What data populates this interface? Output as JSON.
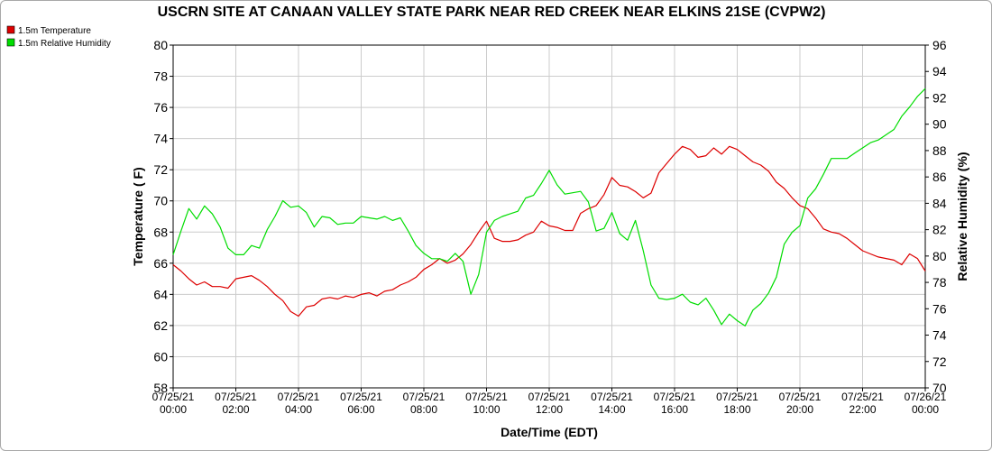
{
  "chart_data": {
    "type": "line",
    "title": "USCRN SITE AT CANAAN VALLEY STATE PARK NEAR RED CREEK NEAR ELKINS 21SE (CVPW2)",
    "xlabel": "Date/Time (EDT)",
    "ylabel": "Temperature ( F)",
    "y2label": "Relative Humidity (%)",
    "xlim": [
      0,
      24
    ],
    "ylim": [
      58,
      80
    ],
    "y2lim": [
      70,
      96
    ],
    "yticks": [
      58,
      60,
      62,
      64,
      66,
      68,
      70,
      72,
      74,
      76,
      78,
      80
    ],
    "y2ticks": [
      70,
      72,
      74,
      76,
      78,
      80,
      82,
      84,
      86,
      88,
      90,
      92,
      94,
      96
    ],
    "xticks": [
      {
        "x": 0,
        "date": "07/25/21",
        "time": "00:00"
      },
      {
        "x": 2,
        "date": "07/25/21",
        "time": "02:00"
      },
      {
        "x": 4,
        "date": "07/25/21",
        "time": "04:00"
      },
      {
        "x": 6,
        "date": "07/25/21",
        "time": "06:00"
      },
      {
        "x": 8,
        "date": "07/25/21",
        "time": "08:00"
      },
      {
        "x": 10,
        "date": "07/25/21",
        "time": "10:00"
      },
      {
        "x": 12,
        "date": "07/25/21",
        "time": "12:00"
      },
      {
        "x": 14,
        "date": "07/25/21",
        "time": "14:00"
      },
      {
        "x": 16,
        "date": "07/25/21",
        "time": "16:00"
      },
      {
        "x": 18,
        "date": "07/25/21",
        "time": "18:00"
      },
      {
        "x": 20,
        "date": "07/25/21",
        "time": "20:00"
      },
      {
        "x": 22,
        "date": "07/25/21",
        "time": "22:00"
      },
      {
        "x": 24,
        "date": "07/26/21",
        "time": "00:00"
      }
    ],
    "grid": true,
    "legend_position": "top-left",
    "series": [
      {
        "name": "1.5m Temperature",
        "axis": "left",
        "color": "#dd0000",
        "x": [
          0,
          0.25,
          0.5,
          0.75,
          1,
          1.25,
          1.5,
          1.75,
          2,
          2.25,
          2.5,
          2.75,
          3,
          3.25,
          3.5,
          3.75,
          4,
          4.25,
          4.5,
          4.75,
          5,
          5.25,
          5.5,
          5.75,
          6,
          6.25,
          6.5,
          6.75,
          7,
          7.25,
          7.5,
          7.75,
          8,
          8.25,
          8.5,
          8.75,
          9,
          9.25,
          9.5,
          9.75,
          10,
          10.25,
          10.5,
          10.75,
          11,
          11.25,
          11.5,
          11.75,
          12,
          12.25,
          12.5,
          12.75,
          13,
          13.25,
          13.5,
          13.75,
          14,
          14.25,
          14.5,
          14.75,
          15,
          15.25,
          15.5,
          15.75,
          16,
          16.25,
          16.5,
          16.75,
          17,
          17.25,
          17.5,
          17.75,
          18,
          18.25,
          18.5,
          18.75,
          19,
          19.25,
          19.5,
          19.75,
          20,
          20.25,
          20.5,
          20.75,
          21,
          21.25,
          21.5,
          21.75,
          22,
          22.25,
          22.5,
          22.75,
          23,
          23.25,
          23.5,
          23.75,
          24
        ],
        "y": [
          65.9,
          65.5,
          65.0,
          64.6,
          64.8,
          64.5,
          64.5,
          64.4,
          65.0,
          65.1,
          65.2,
          64.9,
          64.5,
          64.0,
          63.6,
          62.9,
          62.6,
          63.2,
          63.3,
          63.7,
          63.8,
          63.7,
          63.9,
          63.8,
          64.0,
          64.1,
          63.9,
          64.2,
          64.3,
          64.6,
          64.8,
          65.1,
          65.6,
          65.9,
          66.3,
          66.0,
          66.2,
          66.6,
          67.2,
          68.0,
          68.7,
          67.6,
          67.4,
          67.4,
          67.5,
          67.8,
          68.0,
          68.7,
          68.4,
          68.3,
          68.1,
          68.1,
          69.2,
          69.5,
          69.7,
          70.4,
          71.5,
          71.0,
          70.9,
          70.6,
          70.2,
          70.5,
          71.8,
          72.4,
          73.0,
          73.5,
          73.3,
          72.8,
          72.9,
          73.4,
          73.0,
          73.5,
          73.3,
          72.9,
          72.5,
          72.3,
          71.9,
          71.2,
          70.8,
          70.2,
          69.7,
          69.5,
          68.9,
          68.2,
          68.0,
          67.9,
          67.6,
          67.2,
          66.8,
          66.6,
          66.4,
          66.3,
          66.2,
          65.9,
          66.6,
          66.3,
          65.5
        ]
      },
      {
        "name": "1.5m Relative Humidity",
        "axis": "right",
        "color": "#00dd00",
        "x": [
          0,
          0.25,
          0.5,
          0.75,
          1,
          1.25,
          1.5,
          1.75,
          2,
          2.25,
          2.5,
          2.75,
          3,
          3.25,
          3.5,
          3.75,
          4,
          4.25,
          4.5,
          4.75,
          5,
          5.25,
          5.5,
          5.75,
          6,
          6.25,
          6.5,
          6.75,
          7,
          7.25,
          7.5,
          7.75,
          8,
          8.25,
          8.5,
          8.75,
          9,
          9.25,
          9.5,
          9.75,
          10,
          10.25,
          10.5,
          10.75,
          11,
          11.25,
          11.5,
          11.75,
          12,
          12.25,
          12.5,
          12.75,
          13,
          13.25,
          13.5,
          13.75,
          14,
          14.25,
          14.5,
          14.75,
          15,
          15.25,
          15.5,
          15.75,
          16,
          16.25,
          16.5,
          16.75,
          17,
          17.25,
          17.5,
          17.75,
          18,
          18.25,
          18.5,
          18.75,
          19,
          19.25,
          19.5,
          19.75,
          20,
          20.25,
          20.5,
          20.75,
          21,
          21.25,
          21.5,
          21.75,
          22,
          22.25,
          22.5,
          22.75,
          23,
          23.25,
          23.5,
          23.75,
          24
        ],
        "y": [
          80.1,
          81.9,
          83.6,
          82.8,
          83.8,
          83.2,
          82.2,
          80.6,
          80.1,
          80.1,
          80.8,
          80.6,
          82.0,
          83.0,
          84.2,
          83.7,
          83.8,
          83.3,
          82.2,
          83.0,
          82.9,
          82.4,
          82.5,
          82.5,
          83.0,
          82.9,
          82.8,
          83.0,
          82.7,
          82.9,
          81.9,
          80.8,
          80.2,
          79.8,
          79.8,
          79.6,
          80.2,
          79.6,
          77.1,
          78.6,
          81.8,
          82.7,
          83.0,
          83.2,
          83.4,
          84.4,
          84.6,
          85.5,
          86.5,
          85.4,
          84.7,
          84.8,
          84.9,
          84.1,
          81.9,
          82.1,
          83.3,
          81.7,
          81.2,
          82.7,
          80.4,
          77.8,
          76.8,
          76.7,
          76.8,
          77.1,
          76.5,
          76.3,
          76.8,
          75.9,
          74.8,
          75.6,
          75.1,
          74.7,
          75.9,
          76.4,
          77.2,
          78.4,
          80.9,
          81.8,
          82.3,
          84.4,
          85.1,
          86.2,
          87.4,
          87.4,
          87.4,
          87.8,
          88.2,
          88.6,
          88.8,
          89.2,
          89.6,
          90.6,
          91.3,
          92.1,
          92.7
        ]
      }
    ]
  }
}
